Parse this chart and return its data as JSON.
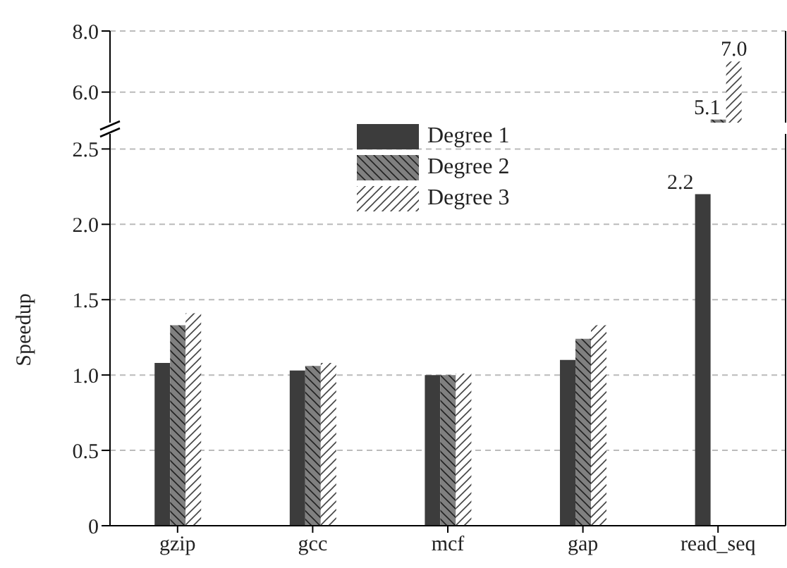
{
  "chart_data": [
    {
      "type": "bar",
      "categories": [
        null,
        null,
        null,
        null,
        null
      ],
      "series": [
        {
          "color": "#3c3c3c",
          "values": [
            null,
            null,
            null,
            null,
            null
          ]
        },
        {
          "color": "#808080",
          "values": [
            null,
            null,
            null,
            null,
            5.1
          ],
          "value_labels": [
            null,
            null,
            null,
            null,
            "5.1"
          ]
        },
        {
          "color": "#ffffff",
          "values": [
            null,
            null,
            null,
            null,
            7.0
          ],
          "value_labels": [
            null,
            null,
            null,
            null,
            "7.0"
          ]
        }
      ],
      "ylim": [
        5.0,
        8.0
      ],
      "yticks": [
        {
          "value": 6.0,
          "label": "6.0"
        },
        {
          "value": 8.0,
          "label": "8.0"
        }
      ],
      "grid": "y",
      "tick_labels": "y"
    },
    {
      "type": "bar",
      "ylabel": "Speedup",
      "categories": [
        "gzip",
        "gcc",
        "mcf",
        "gap",
        "read_seq"
      ],
      "series": [
        {
          "name": "Degree 1",
          "color": "#3c3c3c",
          "values": [
            1.08,
            1.03,
            1.0,
            1.1,
            2.2
          ],
          "value_labels": [
            null,
            null,
            null,
            null,
            "2.2"
          ]
        },
        {
          "name": "Degree 2",
          "color": "#808080",
          "values": [
            1.33,
            1.06,
            1.0,
            1.24,
            null
          ]
        },
        {
          "name": "Degree 3",
          "color": "#ffffff",
          "values": [
            1.41,
            1.08,
            1.01,
            1.33,
            null
          ]
        }
      ],
      "ylim": [
        0,
        2.6
      ],
      "yticks": [
        0,
        0.5,
        {
          "value": 1.0,
          "label": "1.0"
        },
        1.5,
        {
          "value": 2.0,
          "label": "2.0"
        },
        2.5
      ],
      "grid": "y",
      "legend": "top"
    }
  ]
}
